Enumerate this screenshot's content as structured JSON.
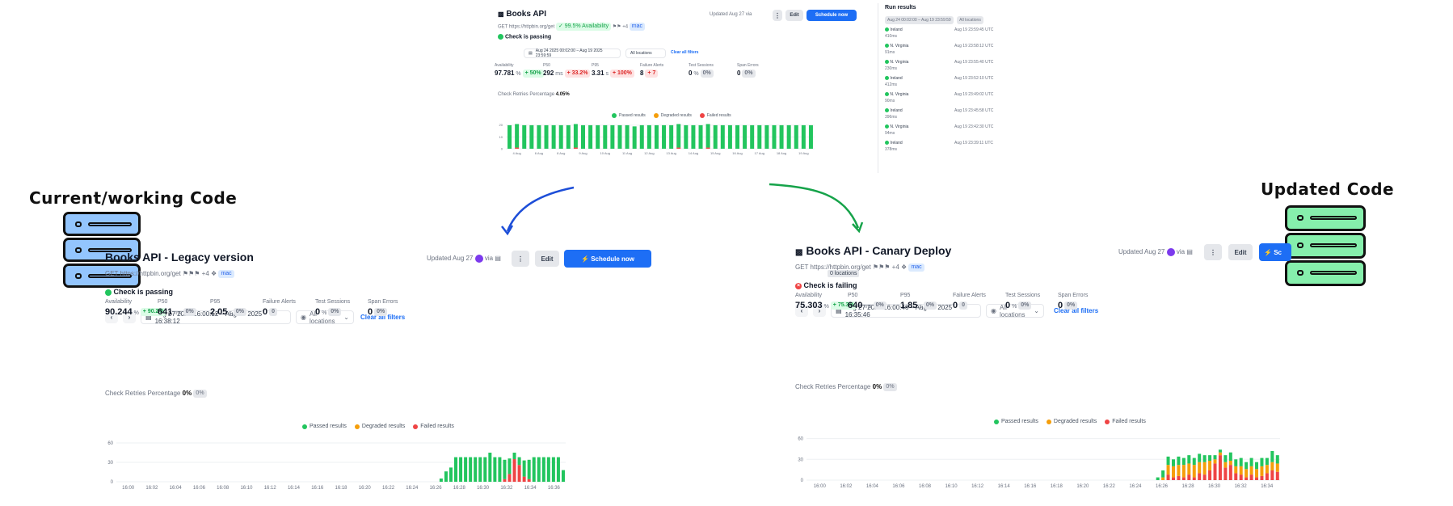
{
  "labels": {
    "current": "Current/working Code",
    "updated": "Updated Code"
  },
  "colors": {
    "passed": "#22c55e",
    "degraded": "#f59e0b",
    "failed": "#ef4444",
    "accent": "#1d6ef5",
    "server_current": "#93c5fd",
    "server_updated": "#86efac",
    "arrow_blue": "#1d4ed8",
    "arrow_green": "#16a34a"
  },
  "top": {
    "title": "Books API",
    "url": "GET https://httpbin.org/get",
    "badge": "✓ 99.5% Availability",
    "flags_more": "+4",
    "tag": "mac",
    "updated": "Updated Aug 27",
    "via": "via",
    "edit": "Edit",
    "schedule": "Schedule now",
    "status": "Check is passing",
    "range": "Aug 24 2025 00:02:00 – Aug 19 2025 23:59:59",
    "locations": "All locations",
    "clear": "Clear all filters",
    "metrics": [
      {
        "label": "Availability",
        "value": "97.781",
        "unit": "%",
        "delta": "+ 50%",
        "tone": "green"
      },
      {
        "label": "P50",
        "value": "292",
        "unit": "ms",
        "delta": "+ 33.2%",
        "tone": "red"
      },
      {
        "label": "P95",
        "value": "3.31",
        "unit": "s",
        "delta": "+ 100%",
        "tone": "red"
      },
      {
        "label": "Failure Alerts",
        "value": "8",
        "unit": "",
        "delta": "+ 7",
        "tone": "red"
      },
      {
        "label": "Test Sessions",
        "value": "0",
        "unit": "%",
        "delta": "0%",
        "tone": "grey"
      },
      {
        "label": "Span Errors",
        "value": "0",
        "unit": "",
        "delta": "0%",
        "tone": "grey"
      }
    ],
    "retries": "Check Retries Percentage",
    "retries_value": "4.05%",
    "legend": [
      "Passed results",
      "Degraded results",
      "Failed results"
    ],
    "run_results": {
      "title": "Run results",
      "range": "Aug 24 00:02:00 – Aug 19 23:59:59",
      "all_locations": "All locations",
      "items": [
        {
          "location": "Ireland",
          "time": "Aug 19 23:59:45 UTC",
          "dur": "410ms"
        },
        {
          "location": "N. Virginia",
          "time": "Aug 19 23:58:12 UTC",
          "dur": "91ms"
        },
        {
          "location": "N. Virginia",
          "time": "Aug 19 23:55:40 UTC",
          "dur": "230ms"
        },
        {
          "location": "Ireland",
          "time": "Aug 19 23:52:10 UTC",
          "dur": "412ms"
        },
        {
          "location": "N. Virginia",
          "time": "Aug 19 23:49:02 UTC",
          "dur": "90ms"
        },
        {
          "location": "Ireland",
          "time": "Aug 19 23:45:58 UTC",
          "dur": "396ms"
        },
        {
          "location": "N. Virginia",
          "time": "Aug 19 23:42:30 UTC",
          "dur": "94ms"
        },
        {
          "location": "Ireland",
          "time": "Aug 19 23:39:11 UTC",
          "dur": "378ms"
        }
      ]
    }
  },
  "left": {
    "title": "Books API - Legacy version",
    "url": "GET https://httpbin.org/get",
    "flags_more": "+4",
    "tag": "mac",
    "updated": "Updated Aug 27",
    "via": "via",
    "edit": "Edit",
    "schedule": "Schedule now",
    "status": "Check is passing",
    "range": "Aug 27 2025 16:00:12 – Aug 27 2025 16:38:12",
    "locations": "All locations",
    "clear": "Clear all filters",
    "metrics": [
      {
        "label": "Availability",
        "value": "90.244",
        "unit": "%",
        "delta": "+ 90.2%",
        "tone": "green"
      },
      {
        "label": "P50",
        "value": "641",
        "unit": "ms",
        "delta": "0%",
        "tone": "grey"
      },
      {
        "label": "P95",
        "value": "2.05",
        "unit": "s",
        "delta": "0%",
        "tone": "grey"
      },
      {
        "label": "Failure Alerts",
        "value": "0",
        "unit": "",
        "delta": "0",
        "tone": "grey"
      },
      {
        "label": "Test Sessions",
        "value": "0",
        "unit": "%",
        "delta": "0%",
        "tone": "grey"
      },
      {
        "label": "Span Errors",
        "value": "0",
        "unit": "",
        "delta": "0%",
        "tone": "grey"
      }
    ],
    "retries": "Check Retries Percentage",
    "retries_value": "0%",
    "retries_delta": "0%",
    "legend": [
      "Passed results",
      "Degraded results",
      "Failed results"
    ]
  },
  "right": {
    "title": "Books API - Canary Deploy",
    "url": "GET https://httpbin.org/get",
    "tooltip": "0 locations",
    "flags_more": "+4",
    "tag": "mac",
    "updated": "Updated Aug 27",
    "via": "via",
    "edit": "Edit",
    "schedule": "Sc",
    "status": "Check is failing",
    "range": "Aug 27 2025 16:00:46 – Aug 27 2025 16:35:46",
    "locations": "All locations",
    "clear": "Clear all filters",
    "metrics": [
      {
        "label": "Availability",
        "value": "75.303",
        "unit": "%",
        "delta": "+ 75.3%",
        "tone": "green"
      },
      {
        "label": "P50",
        "value": "640",
        "unit": "ms",
        "delta": "0%",
        "tone": "grey"
      },
      {
        "label": "P95",
        "value": "1.85",
        "unit": "s",
        "delta": "0%",
        "tone": "grey"
      },
      {
        "label": "Failure Alerts",
        "value": "0",
        "unit": "",
        "delta": "0",
        "tone": "grey"
      },
      {
        "label": "Test Sessions",
        "value": "0",
        "unit": "%",
        "delta": "0%",
        "tone": "grey"
      },
      {
        "label": "Span Errors",
        "value": "0",
        "unit": "",
        "delta": "0%",
        "tone": "grey"
      }
    ],
    "retries": "Check Retries Percentage",
    "retries_value": "0%",
    "retries_delta": "0%",
    "legend": [
      "Passed results",
      "Degraded results",
      "Failed results"
    ]
  },
  "chart_data": [
    {
      "type": "bar",
      "id": "top-chart",
      "title": "",
      "yticks": [
        0,
        10,
        20
      ],
      "xlabels": [
        "4 Aug",
        "6 Aug",
        "8 Aug",
        "9 Aug",
        "10 Aug",
        "11 Aug",
        "12 Aug",
        "13 Aug",
        "14 Aug",
        "15 Aug",
        "16 Aug",
        "17 Aug",
        "18 Aug",
        "19 Aug"
      ],
      "series": [
        {
          "name": "Passed results",
          "values": [
            20,
            20,
            20,
            20,
            20,
            20,
            20,
            20,
            20,
            20,
            20,
            20,
            20,
            20,
            20,
            20,
            20,
            19,
            20,
            20,
            20,
            20,
            20,
            20,
            20,
            20,
            20,
            20,
            20,
            20,
            20,
            20,
            20,
            20,
            20,
            20,
            20,
            20,
            20,
            20,
            20,
            20
          ]
        },
        {
          "name": "Degraded results",
          "values": [
            0,
            0,
            0,
            0,
            0,
            0,
            0,
            0,
            0,
            0,
            0,
            0,
            0,
            0,
            0,
            0,
            0,
            0,
            0,
            0,
            0,
            0,
            0,
            0,
            0,
            0,
            0,
            0,
            0,
            0,
            0,
            0,
            0,
            0,
            0,
            0,
            0,
            0,
            0,
            0,
            0,
            0
          ]
        },
        {
          "name": "Failed results",
          "values": [
            0,
            1,
            0,
            0,
            0,
            0,
            0,
            0,
            0,
            1,
            0,
            0,
            0,
            0,
            0,
            0,
            0,
            0,
            0,
            0,
            0,
            0,
            0,
            1,
            0,
            0,
            0,
            1,
            0,
            0,
            0,
            0,
            0,
            0,
            0,
            0,
            0,
            0,
            0,
            0,
            0,
            0
          ]
        }
      ],
      "ylim": [
        0,
        22
      ]
    },
    {
      "type": "bar",
      "id": "left-chart",
      "title": "",
      "yticks": [
        0,
        30,
        60
      ],
      "xlabels": [
        "16:00",
        "16:02",
        "16:04",
        "16:06",
        "16:08",
        "16:10",
        "16:12",
        "16:14",
        "16:16",
        "16:18",
        "16:20",
        "16:22",
        "16:24",
        "16:26",
        "16:28",
        "16:30",
        "16:32",
        "16:34",
        "16:36"
      ],
      "series": [
        {
          "name": "Passed results",
          "values": [
            0,
            0,
            0,
            0,
            0,
            0,
            0,
            0,
            0,
            0,
            0,
            0,
            0,
            0,
            0,
            0,
            0,
            0,
            0,
            0,
            0,
            0,
            0,
            0,
            0,
            0,
            0,
            0,
            0,
            0,
            0,
            0,
            0,
            0,
            0,
            0,
            0,
            0,
            0,
            0,
            0,
            0,
            0,
            0,
            0,
            0,
            0,
            0,
            0,
            0,
            0,
            0,
            0,
            0,
            0,
            0,
            0,
            0,
            0,
            0,
            0,
            0,
            0,
            0,
            0,
            0,
            5,
            16,
            22,
            38,
            38,
            38,
            38,
            38,
            38,
            38,
            45,
            38,
            38,
            30,
            24,
            10,
            12,
            25,
            30,
            38,
            38,
            38,
            38,
            38,
            38,
            18
          ]
        },
        {
          "name": "Degraded results",
          "values": [
            0,
            0,
            0,
            0,
            0,
            0,
            0,
            0,
            0,
            0,
            0,
            0,
            0,
            0,
            0,
            0,
            0,
            0,
            0,
            0,
            0,
            0,
            0,
            0,
            0,
            0,
            0,
            0,
            0,
            0,
            0,
            0,
            0,
            0,
            0,
            0,
            0,
            0,
            0,
            0,
            0,
            0,
            0,
            0,
            0,
            0,
            0,
            0,
            0,
            0,
            0,
            0,
            0,
            0,
            0,
            0,
            0,
            0,
            0,
            0,
            0,
            0,
            0,
            0,
            0,
            0,
            0,
            0,
            0,
            0,
            0,
            0,
            0,
            0,
            0,
            0,
            0,
            0,
            0,
            0,
            0,
            0,
            0,
            0,
            0,
            0,
            0,
            0,
            0,
            0,
            0,
            0
          ]
        },
        {
          "name": "Failed results",
          "values": [
            0,
            0,
            0,
            0,
            0,
            0,
            0,
            0,
            0,
            0,
            0,
            0,
            0,
            0,
            0,
            0,
            0,
            0,
            0,
            0,
            0,
            0,
            0,
            0,
            0,
            0,
            0,
            0,
            0,
            0,
            0,
            0,
            0,
            0,
            0,
            0,
            0,
            0,
            0,
            0,
            0,
            0,
            0,
            0,
            0,
            0,
            0,
            0,
            0,
            0,
            0,
            0,
            0,
            0,
            0,
            0,
            0,
            0,
            0,
            0,
            0,
            0,
            0,
            0,
            0,
            0,
            0,
            0,
            0,
            0,
            0,
            0,
            0,
            0,
            0,
            0,
            0,
            0,
            0,
            4,
            12,
            35,
            26,
            8,
            4,
            0,
            0,
            0,
            0,
            0,
            0,
            0
          ]
        }
      ],
      "ylim": [
        0,
        70
      ]
    },
    {
      "type": "bar",
      "id": "right-chart",
      "title": "",
      "yticks": [
        0,
        30,
        60
      ],
      "xlabels": [
        "16:00",
        "16:02",
        "16:04",
        "16:06",
        "16:08",
        "16:10",
        "16:12",
        "16:14",
        "16:16",
        "16:18",
        "16:20",
        "16:22",
        "16:24",
        "16:26",
        "16:28",
        "16:30",
        "16:32",
        "16:34"
      ],
      "series": [
        {
          "name": "Passed results",
          "values": [
            0,
            0,
            0,
            0,
            0,
            0,
            0,
            0,
            0,
            0,
            0,
            0,
            0,
            0,
            0,
            0,
            0,
            0,
            0,
            0,
            0,
            0,
            0,
            0,
            0,
            0,
            0,
            0,
            0,
            0,
            0,
            0,
            0,
            0,
            0,
            0,
            0,
            0,
            0,
            0,
            0,
            0,
            0,
            0,
            0,
            0,
            0,
            0,
            0,
            0,
            0,
            0,
            0,
            0,
            0,
            0,
            0,
            0,
            0,
            0,
            0,
            0,
            0,
            0,
            0,
            0,
            0,
            4,
            10,
            12,
            10,
            12,
            10,
            12,
            10,
            12,
            10,
            8,
            6,
            4,
            10,
            12,
            10,
            12,
            10,
            12,
            10,
            12,
            10,
            16,
            12
          ]
        },
        {
          "name": "Degraded results",
          "values": [
            0,
            0,
            0,
            0,
            0,
            0,
            0,
            0,
            0,
            0,
            0,
            0,
            0,
            0,
            0,
            0,
            0,
            0,
            0,
            0,
            0,
            0,
            0,
            0,
            0,
            0,
            0,
            0,
            0,
            0,
            0,
            0,
            0,
            0,
            0,
            0,
            0,
            0,
            0,
            0,
            0,
            0,
            0,
            0,
            0,
            0,
            0,
            0,
            0,
            0,
            0,
            0,
            0,
            0,
            0,
            0,
            0,
            0,
            0,
            0,
            0,
            0,
            0,
            0,
            0,
            0,
            0,
            0,
            4,
            14,
            16,
            16,
            18,
            16,
            18,
            16,
            18,
            14,
            6,
            4,
            8,
            6,
            10,
            12,
            12,
            12,
            12,
            14,
            12,
            12,
            12
          ]
        },
        {
          "name": "Failed results",
          "values": [
            0,
            0,
            0,
            0,
            0,
            0,
            0,
            0,
            0,
            0,
            0,
            0,
            0,
            0,
            0,
            0,
            0,
            0,
            0,
            0,
            0,
            0,
            0,
            0,
            0,
            0,
            0,
            0,
            0,
            0,
            0,
            0,
            0,
            0,
            0,
            0,
            0,
            0,
            0,
            0,
            0,
            0,
            0,
            0,
            0,
            0,
            0,
            0,
            0,
            0,
            0,
            0,
            0,
            0,
            0,
            0,
            0,
            0,
            0,
            0,
            0,
            0,
            0,
            0,
            0,
            0,
            0,
            0,
            0,
            8,
            4,
            6,
            4,
            8,
            4,
            10,
            8,
            14,
            24,
            36,
            18,
            22,
            10,
            8,
            4,
            8,
            4,
            6,
            10,
            14,
            12
          ]
        }
      ],
      "ylim": [
        0,
        70
      ]
    }
  ]
}
